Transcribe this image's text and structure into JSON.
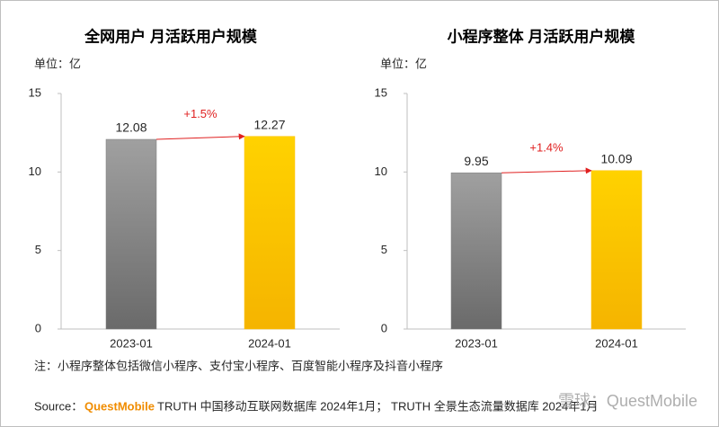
{
  "chart_data": [
    {
      "type": "bar",
      "title": "全网用户 月活跃用户规模",
      "unit": "单位：亿",
      "categories": [
        "2023-01",
        "2024-01"
      ],
      "values": [
        12.08,
        12.27
      ],
      "colors": [
        "#7f7f7f",
        "#ffc000"
      ],
      "ylim": [
        0,
        15
      ],
      "yticks": [
        0,
        5,
        10,
        15
      ],
      "annotation": "+1.5%"
    },
    {
      "type": "bar",
      "title": "小程序整体 月活跃用户规模",
      "unit": "单位：亿",
      "categories": [
        "2023-01",
        "2024-01"
      ],
      "values": [
        9.95,
        10.09
      ],
      "colors": [
        "#7f7f7f",
        "#ffc000"
      ],
      "ylim": [
        0,
        15
      ],
      "yticks": [
        0,
        5,
        10,
        15
      ],
      "annotation": "+1.4%"
    }
  ],
  "footer": {
    "note": "注：小程序整体包括微信小程序、支付宝小程序、百度智能小程序及抖音小程序",
    "source_label": "Source：",
    "source_brand": "QuestMobile",
    "source_text": "TRUTH 中国移动互联网数据库 2024年1月； TRUTH 全景生态流量数据库 2024年1月",
    "watermark": "雪球：QuestMobile"
  }
}
